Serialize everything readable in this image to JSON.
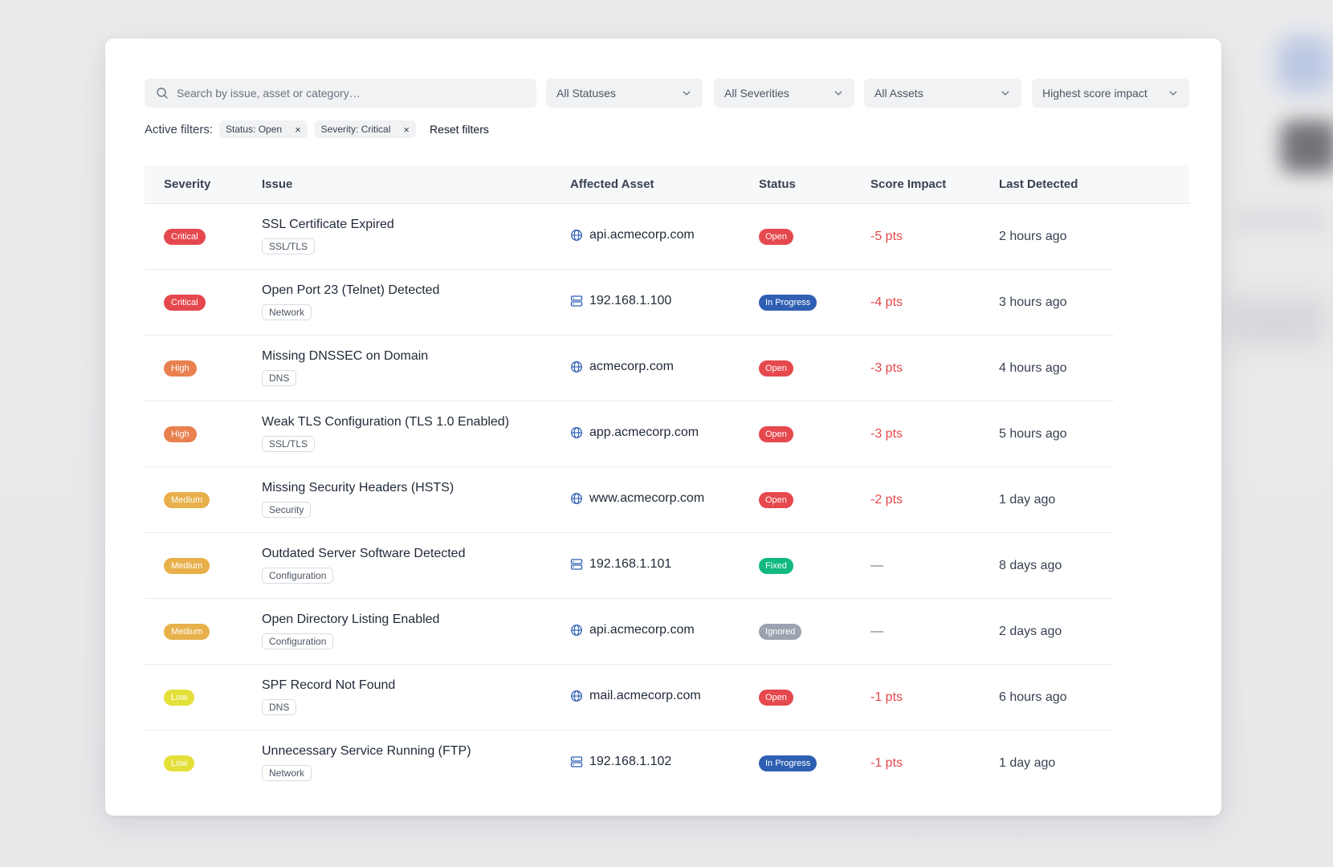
{
  "colors": {
    "critical": "#e5484d",
    "high": "#e8804f",
    "medium": "#e8b04a",
    "low": "#e4e03a",
    "open": "#e5484d",
    "in_progress": "#2f5fb3",
    "fixed": "#10b981",
    "ignored": "#9ca3af",
    "impact_negative": "#e5484d",
    "impact_none": "#6b7280",
    "asset_icon": "#2f5fb3"
  },
  "filters": {
    "search_placeholder": "Search by issue, asset or category…",
    "status_select": "All Statuses",
    "severity_select": "All Severities",
    "asset_select": "All Assets",
    "sort_select": "Highest score impact"
  },
  "active_filters": {
    "label": "Active filters:",
    "chips": [
      {
        "label": "Status: Open",
        "remove": "×"
      },
      {
        "label": "Severity: Critical",
        "remove": "×"
      }
    ],
    "reset_label": "Reset filters"
  },
  "table": {
    "columns": [
      "Severity",
      "Issue",
      "Affected Asset",
      "Status",
      "Score Impact",
      "Last Detected"
    ],
    "rows": [
      {
        "severity": "Critical",
        "sev_key": "critical",
        "issue": "SSL Certificate Expired",
        "category": "SSL/TLS",
        "asset": "api.acmecorp.com",
        "asset_icon": "globe-icon",
        "status": "Open",
        "status_key": "open",
        "impact": "-5 pts",
        "detected": "2 hours ago"
      },
      {
        "severity": "Critical",
        "sev_key": "critical",
        "issue": "Open Port 23 (Telnet) Detected",
        "category": "Network",
        "asset": "192.168.1.100",
        "asset_icon": "server-icon",
        "status": "In Progress",
        "status_key": "in_progress",
        "impact": "-4 pts",
        "detected": "3 hours ago"
      },
      {
        "severity": "High",
        "sev_key": "high",
        "issue": "Missing DNSSEC on Domain",
        "category": "DNS",
        "asset": "acmecorp.com",
        "asset_icon": "globe-icon",
        "status": "Open",
        "status_key": "open",
        "impact": "-3 pts",
        "detected": "4 hours ago"
      },
      {
        "severity": "High",
        "sev_key": "high",
        "issue": "Weak TLS Configuration (TLS 1.0 Enabled)",
        "category": "SSL/TLS",
        "asset": "app.acmecorp.com",
        "asset_icon": "globe-icon",
        "status": "Open",
        "status_key": "open",
        "impact": "-3 pts",
        "detected": "5 hours ago"
      },
      {
        "severity": "Medium",
        "sev_key": "medium",
        "issue": "Missing Security Headers (HSTS)",
        "category": "Security",
        "asset": "www.acmecorp.com",
        "asset_icon": "globe-icon",
        "status": "Open",
        "status_key": "open",
        "impact": "-2 pts",
        "detected": "1 day ago"
      },
      {
        "severity": "Medium",
        "sev_key": "medium",
        "issue": "Outdated Server Software Detected",
        "category": "Configuration",
        "asset": "192.168.1.101",
        "asset_icon": "server-icon",
        "status": "Fixed",
        "status_key": "fixed",
        "impact": "—",
        "detected": "8 days ago"
      },
      {
        "severity": "Medium",
        "sev_key": "medium",
        "issue": "Open Directory Listing Enabled",
        "category": "Configuration",
        "asset": "api.acmecorp.com",
        "asset_icon": "globe-icon",
        "status": "Ignored",
        "status_key": "ignored",
        "impact": "—",
        "detected": "2 days ago"
      },
      {
        "severity": "Low",
        "sev_key": "low",
        "issue": "SPF Record Not Found",
        "category": "DNS",
        "asset": "mail.acmecorp.com",
        "asset_icon": "globe-icon",
        "status": "Open",
        "status_key": "open",
        "impact": "-1 pts",
        "detected": "6 hours ago"
      },
      {
        "severity": "Low",
        "sev_key": "low",
        "issue": "Unnecessary Service Running (FTP)",
        "category": "Network",
        "asset": "192.168.1.102",
        "asset_icon": "server-icon",
        "status": "In Progress",
        "status_key": "in_progress",
        "impact": "-1 pts",
        "detected": "1 day ago"
      }
    ]
  }
}
